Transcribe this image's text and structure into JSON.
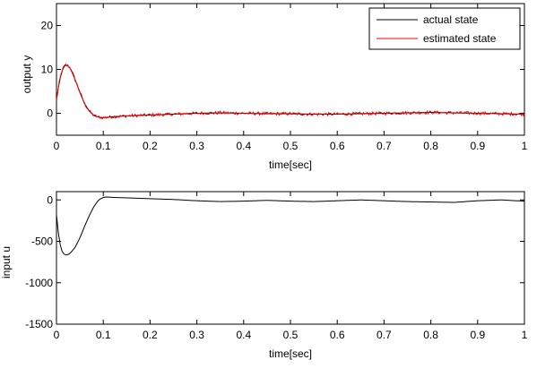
{
  "chart_data": [
    {
      "type": "line",
      "xlabel": "time[sec]",
      "ylabel": "output y",
      "xlim": [
        0,
        1
      ],
      "ylim": [
        -5,
        25
      ],
      "xticks": [
        0,
        0.1,
        0.2,
        0.3,
        0.4,
        0.5,
        0.6,
        0.7,
        0.8,
        0.9,
        1
      ],
      "xtick_labels": [
        "0",
        "0.1",
        "0.2",
        "0.3",
        "0.4",
        "0.5",
        "0.6",
        "0.7",
        "0.8",
        "0.9",
        "1"
      ],
      "yticks": [
        0,
        10,
        20
      ],
      "ytick_labels": [
        "0",
        "10",
        "20"
      ],
      "grid": false,
      "legend": "top-right",
      "series": [
        {
          "name": "actual state",
          "color": "#000000",
          "x": [
            0,
            0.005,
            0.01,
            0.015,
            0.02,
            0.025,
            0.03,
            0.035,
            0.04,
            0.05,
            0.06,
            0.07,
            0.08,
            0.09,
            0.1,
            0.11,
            0.12,
            0.15,
            0.2,
            0.25,
            0.3,
            0.35,
            0.4,
            0.45,
            0.5,
            0.55,
            0.6,
            0.65,
            0.7,
            0.75,
            0.8,
            0.85,
            0.9,
            0.95,
            1
          ],
          "y": [
            3,
            6.5,
            9,
            10.5,
            11,
            10.8,
            10.2,
            9,
            7.6,
            4.8,
            2.2,
            0.5,
            -0.5,
            -0.9,
            -1,
            -0.9,
            -0.8,
            -0.6,
            -0.4,
            -0.2,
            0,
            0.1,
            0,
            -0.1,
            -0.1,
            -0.2,
            -0.2,
            -0.1,
            0,
            0.1,
            0.2,
            0.1,
            0,
            -0.1,
            -0.2
          ]
        },
        {
          "name": "estimated state",
          "color": "#ff0000",
          "x": [
            0,
            0.005,
            0.01,
            0.015,
            0.02,
            0.025,
            0.03,
            0.035,
            0.04,
            0.05,
            0.06,
            0.07,
            0.08,
            0.09,
            0.1,
            0.11,
            0.12,
            0.15,
            0.2,
            0.25,
            0.3,
            0.35,
            0.4,
            0.45,
            0.5,
            0.55,
            0.6,
            0.65,
            0.7,
            0.75,
            0.8,
            0.85,
            0.9,
            0.95,
            1
          ],
          "y": [
            3,
            6.5,
            9,
            10.5,
            11,
            10.8,
            10.2,
            9,
            7.6,
            4.8,
            2.2,
            0.5,
            -0.5,
            -0.9,
            -1,
            -0.9,
            -0.8,
            -0.6,
            -0.4,
            -0.2,
            0,
            0.1,
            0,
            -0.1,
            -0.1,
            -0.2,
            -0.2,
            -0.1,
            0,
            0.1,
            0.2,
            0.1,
            0,
            -0.1,
            -0.2
          ]
        }
      ]
    },
    {
      "type": "line",
      "xlabel": "time[sec]",
      "ylabel": "input u",
      "xlim": [
        0,
        1
      ],
      "ylim": [
        -1500,
        100
      ],
      "xticks": [
        0,
        0.1,
        0.2,
        0.3,
        0.4,
        0.5,
        0.6,
        0.7,
        0.8,
        0.9,
        1
      ],
      "xtick_labels": [
        "0",
        "0.1",
        "0.2",
        "0.3",
        "0.4",
        "0.5",
        "0.6",
        "0.7",
        "0.8",
        "0.9",
        "1"
      ],
      "yticks": [
        -1500,
        -1000,
        -500,
        0
      ],
      "ytick_labels": [
        "-1500",
        "-1000",
        "-500",
        "0"
      ],
      "grid": false,
      "series": [
        {
          "color": "#000000",
          "x": [
            0,
            0.005,
            0.01,
            0.015,
            0.02,
            0.025,
            0.03,
            0.04,
            0.05,
            0.06,
            0.07,
            0.08,
            0.09,
            0.1,
            0.105,
            0.11,
            0.12,
            0.15,
            0.2,
            0.25,
            0.3,
            0.35,
            0.4,
            0.45,
            0.5,
            0.55,
            0.6,
            0.65,
            0.7,
            0.75,
            0.8,
            0.85,
            0.9,
            0.95,
            1
          ],
          "y": [
            -180,
            -450,
            -600,
            -650,
            -665,
            -660,
            -640,
            -570,
            -460,
            -320,
            -190,
            -80,
            0,
            30,
            35,
            35,
            30,
            25,
            15,
            5,
            -10,
            -20,
            -15,
            -5,
            -15,
            -20,
            -10,
            0,
            -10,
            -20,
            -25,
            -30,
            -10,
            0,
            -15
          ]
        }
      ]
    }
  ]
}
